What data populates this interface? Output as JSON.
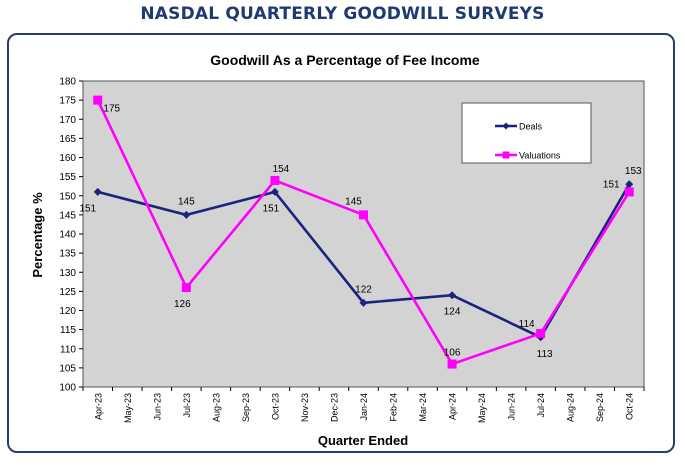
{
  "header": {
    "title": "NASDAL QUARTERLY GOODWILL SURVEYS"
  },
  "chart_data": {
    "type": "line",
    "title": "Goodwill As a Percentage of Fee Income",
    "xlabel": "Quarter Ended",
    "ylabel": "Percentage %",
    "ylim": [
      100,
      180
    ],
    "ytick_step": 5,
    "grid": false,
    "legend_position": "top-right",
    "categories": [
      "Apr-23",
      "May-23",
      "Jun-23",
      "Jul-23",
      "Aug-23",
      "Sep-23",
      "Oct-23",
      "Nov-23",
      "Dec-23",
      "Jan-24",
      "Feb-24",
      "Mar-24",
      "Apr-24",
      "May-24",
      "Jun-24",
      "Jul-24",
      "Aug-24",
      "Sep-24",
      "Oct-24"
    ],
    "series": [
      {
        "name": "Deals",
        "color": "#1a237e",
        "marker": "diamond",
        "points": [
          {
            "x": "Apr-23",
            "y": 151
          },
          {
            "x": "Jul-23",
            "y": 145
          },
          {
            "x": "Oct-23",
            "y": 151
          },
          {
            "x": "Jan-24",
            "y": 122
          },
          {
            "x": "Apr-24",
            "y": 124
          },
          {
            "x": "Jul-24",
            "y": 113
          },
          {
            "x": "Oct-24",
            "y": 153
          }
        ]
      },
      {
        "name": "Valuations",
        "color": "#ff00ff",
        "marker": "square",
        "points": [
          {
            "x": "Apr-23",
            "y": 175
          },
          {
            "x": "Jul-23",
            "y": 126
          },
          {
            "x": "Oct-23",
            "y": 154
          },
          {
            "x": "Jan-24",
            "y": 145
          },
          {
            "x": "Apr-24",
            "y": 106
          },
          {
            "x": "Jul-24",
            "y": 114
          },
          {
            "x": "Oct-24",
            "y": 151
          }
        ]
      }
    ]
  }
}
